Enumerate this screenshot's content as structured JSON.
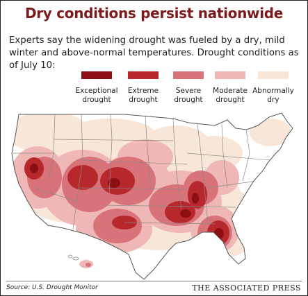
{
  "title": "Dry conditions persist nationwide",
  "subtitle": "Experts say the widening drought was fueled by a dry, mild winter and above-normal temperatures. Drought conditions as of July 10:",
  "legend": [
    {
      "line1": "Exceptional",
      "line2": "drought",
      "color": "#8c0f14"
    },
    {
      "line1": "Extreme",
      "line2": "drought",
      "color": "#b7282d"
    },
    {
      "line1": "Severe",
      "line2": "drought",
      "color": "#d8737a"
    },
    {
      "line1": "Moderate",
      "line2": "drought",
      "color": "#efb7b5"
    },
    {
      "line1": "Abnormally",
      "line2": "dry",
      "color": "#f8e6d8"
    }
  ],
  "map_colors": {
    "background": "#ffffff",
    "land": "#ffffff",
    "state_border": "#8a8a8a"
  },
  "source": "Source: U.S. Drought Monitor",
  "credit": "THE ASSOCIATED PRESS"
}
